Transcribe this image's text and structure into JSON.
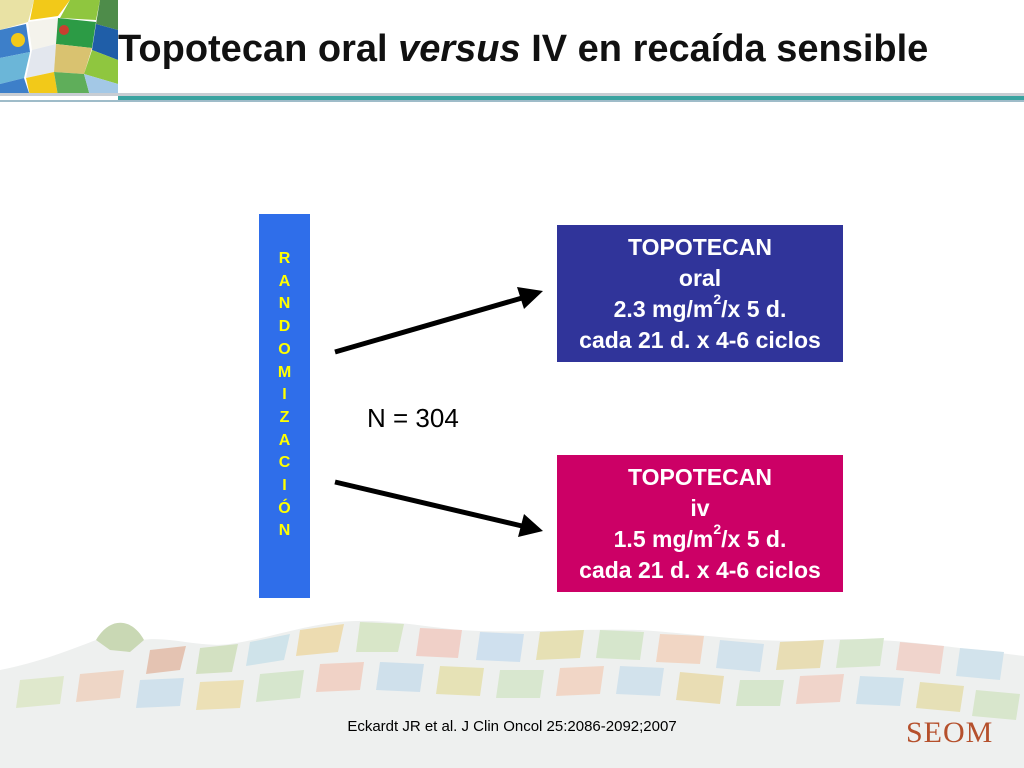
{
  "slide": {
    "title_part1": "Topotecan oral ",
    "title_emph": "versus",
    "title_part2": " IV en recaída sensible",
    "randomization_letters": [
      "R",
      "A",
      "N",
      "D",
      "O",
      "M",
      "I",
      "Z",
      "A",
      "C",
      "I",
      "Ó",
      "N"
    ],
    "sample_size": "N = 304",
    "arms": [
      {
        "line1": "TOPOTECAN",
        "line2": "oral",
        "dose_value": "2.3 mg/m",
        "dose_exp": "2",
        "dose_rest": "/x 5 d.",
        "schedule": "cada 21 d. x 4-6 ciclos",
        "color": "#30349a"
      },
      {
        "line1": "TOPOTECAN",
        "line2": "iv",
        "dose_value": "1.5 mg/m",
        "dose_exp": "2",
        "dose_rest": "/x 5 d.",
        "schedule": "cada 21 d. x 4-6 ciclos",
        "color": "#cc0066"
      }
    ],
    "citation": "Eckardt JR et al. J Clin Oncol 25:2086-2092;2007",
    "brand": "SEOM",
    "colors": {
      "randomization_bar": "#2f6eea",
      "letters": "#ffff00",
      "accent_rule": "#3aa3a0"
    }
  }
}
